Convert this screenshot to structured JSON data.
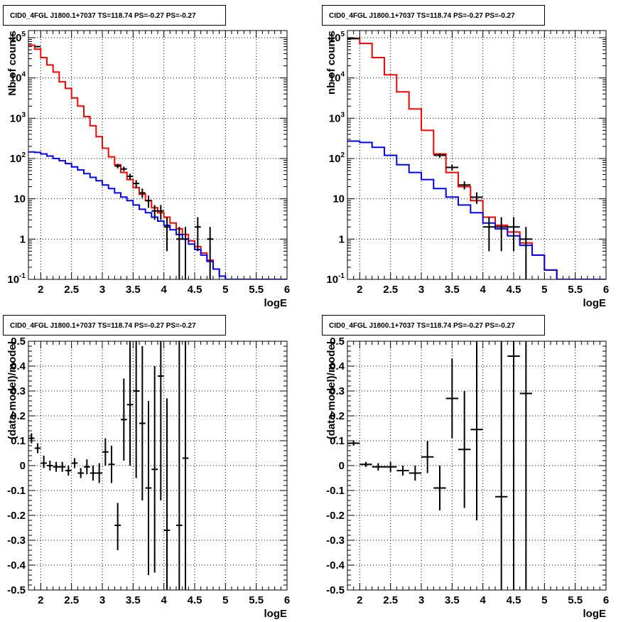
{
  "chart_data": [
    {
      "type": "line",
      "title": "CID0_4FGL J1800.1+7037 TS=118.74 PS=-0.27 PS=-0.27",
      "xlabel": "logE",
      "ylabel": "Nb of counts",
      "xlim": [
        1.8,
        6.0
      ],
      "ylim": [
        0.1,
        150000
      ],
      "ylog": true,
      "grid": true,
      "x_ticks": [
        "2",
        "2.5",
        "3",
        "3.5",
        "4",
        "4.5",
        "5",
        "5.5",
        "6"
      ],
      "y_ticks": [
        "10^-1",
        "1",
        "10",
        "10^2",
        "10^3",
        "10^4",
        "10^5"
      ],
      "bin_edges": [
        1.8,
        1.9,
        2.0,
        2.1,
        2.2,
        2.3,
        2.4,
        2.5,
        2.6,
        2.7,
        2.8,
        2.9,
        3.0,
        3.1,
        3.2,
        3.3,
        3.4,
        3.5,
        3.6,
        3.7,
        3.8,
        3.9,
        4.0,
        4.1,
        4.2,
        4.3,
        4.4,
        4.5,
        4.6,
        4.7,
        4.8,
        4.9,
        5.0,
        5.1,
        5.2,
        5.3,
        5.4,
        5.5,
        5.6,
        5.7,
        5.8,
        5.9,
        6.0
      ],
      "series": [
        {
          "color": "#ff0000",
          "values": [
            65000,
            52000,
            32000,
            21000,
            14000,
            8000,
            5500,
            3200,
            2000,
            1100,
            650,
            350,
            180,
            110,
            70,
            45,
            30,
            19,
            13,
            9,
            6,
            4.5,
            3.5,
            2.5,
            1.8,
            1.3,
            0.9,
            0.65,
            0.45,
            0.3,
            0.18,
            0.12,
            0.1,
            0.1,
            0.1,
            0.1,
            0.1,
            0.1,
            0.1,
            0.1,
            0.1,
            0.1
          ]
        },
        {
          "color": "#0000ff",
          "values": [
            145,
            142,
            130,
            115,
            100,
            88,
            75,
            62,
            52,
            42,
            34,
            28,
            22,
            18,
            14,
            11,
            9,
            7,
            5.5,
            4.5,
            3.5,
            2.8,
            2.2,
            1.7,
            1.3,
            1.0,
            0.75,
            0.55,
            0.4,
            0.28,
            0.18,
            0.12,
            0.1,
            0.1,
            0.1,
            0.1,
            0.1,
            0.1,
            0.1,
            0.1,
            0.1,
            0.1
          ]
        }
      ],
      "points": [
        {
          "x": 1.95,
          "y": 60000,
          "ylo": 58000,
          "yhi": 62000
        },
        {
          "x": 3.25,
          "y": 65,
          "ylo": 57,
          "yhi": 73
        },
        {
          "x": 3.35,
          "y": 55,
          "ylo": 48,
          "yhi": 63
        },
        {
          "x": 3.45,
          "y": 36,
          "ylo": 30,
          "yhi": 42
        },
        {
          "x": 3.55,
          "y": 24,
          "ylo": 19,
          "yhi": 29
        },
        {
          "x": 3.65,
          "y": 14,
          "ylo": 10.5,
          "yhi": 18
        },
        {
          "x": 3.75,
          "y": 9,
          "ylo": 6,
          "yhi": 12
        },
        {
          "x": 3.85,
          "y": 5,
          "ylo": 3,
          "yhi": 7
        },
        {
          "x": 3.95,
          "y": 5,
          "ylo": 3,
          "yhi": 7
        },
        {
          "x": 4.05,
          "y": 2,
          "ylo": 0.5,
          "yhi": 3.5
        },
        {
          "x": 4.25,
          "y": 1,
          "ylo": 0.1,
          "yhi": 2
        },
        {
          "x": 4.35,
          "y": 1,
          "ylo": 0.1,
          "yhi": 2
        },
        {
          "x": 4.55,
          "y": 2,
          "ylo": 0.5,
          "yhi": 3.5
        },
        {
          "x": 4.75,
          "y": 1,
          "ylo": 0.1,
          "yhi": 2
        }
      ]
    },
    {
      "type": "line",
      "title": "CID0_4FGL J1800.1+7037 TS=118.74 PS=-0.27 PS=-0.27",
      "xlabel": "logE",
      "ylabel": "nb of counts",
      "xlim": [
        1.8,
        6.0
      ],
      "ylim": [
        0.1,
        150000
      ],
      "ylog": true,
      "grid": true,
      "x_ticks": [
        "2",
        "2.5",
        "3",
        "3.5",
        "4",
        "4.5",
        "5",
        "5.5",
        "6"
      ],
      "y_ticks": [
        "10^-1",
        "1",
        "10",
        "10^2",
        "10^3",
        "10^4",
        "10^5"
      ],
      "bin_edges": [
        1.8,
        2.0,
        2.2,
        2.4,
        2.6,
        2.8,
        3.0,
        3.2,
        3.4,
        3.6,
        3.8,
        4.0,
        4.2,
        4.4,
        4.6,
        4.8,
        5.0,
        5.2,
        5.4,
        5.6,
        5.8,
        6.0
      ],
      "series": [
        {
          "color": "#ff0000",
          "values": [
            95000,
            72000,
            32000,
            12000,
            4500,
            1700,
            500,
            130,
            45,
            20,
            9,
            3.5,
            2.2,
            1.5,
            0.8,
            0.4,
            0.17,
            0.1,
            0.1,
            0.1,
            0.1
          ]
        },
        {
          "color": "#0000ff",
          "values": [
            270,
            250,
            190,
            120,
            70,
            45,
            30,
            18,
            11,
            7,
            4.5,
            2.5,
            1.8,
            1.2,
            0.7,
            0.4,
            0.17,
            0.1,
            0.1,
            0.1,
            0.1
          ]
        }
      ],
      "points": [
        {
          "x": 1.9,
          "y": 95000,
          "ylo": 92000,
          "yhi": 98000
        },
        {
          "x": 3.3,
          "y": 120,
          "ylo": 105,
          "yhi": 135
        },
        {
          "x": 3.5,
          "y": 60,
          "ylo": 50,
          "yhi": 70
        },
        {
          "x": 3.7,
          "y": 22,
          "ylo": 17,
          "yhi": 27
        },
        {
          "x": 3.9,
          "y": 11,
          "ylo": 7.5,
          "yhi": 14.5
        },
        {
          "x": 4.1,
          "y": 2,
          "ylo": 0.5,
          "yhi": 3.5
        },
        {
          "x": 4.3,
          "y": 2,
          "ylo": 0.5,
          "yhi": 3.5
        },
        {
          "x": 4.5,
          "y": 2,
          "ylo": 0.5,
          "yhi": 3.5
        },
        {
          "x": 4.7,
          "y": 1,
          "ylo": 0.1,
          "yhi": 2
        }
      ]
    },
    {
      "type": "scatter",
      "title": "CID0_4FGL J1800.1+7037 TS=118.74 PS=-0.27 PS=-0.27",
      "xlabel": "logE",
      "ylabel": "(data-model)/model",
      "xlim": [
        1.8,
        6.0
      ],
      "ylim": [
        -0.5,
        0.5
      ],
      "grid": true,
      "x_ticks": [
        "2",
        "2.5",
        "3",
        "3.5",
        "4",
        "4.5",
        "5",
        "5.5",
        "6"
      ],
      "y_ticks": [
        "-0.5",
        "-0.4",
        "-0.3",
        "-0.2",
        "-0.1",
        "0",
        "0.1",
        "0.2",
        "0.3",
        "0.4",
        "0.5"
      ],
      "points": [
        {
          "x": 1.85,
          "y": 0.11,
          "ylo": 0.09,
          "yhi": 0.13
        },
        {
          "x": 1.95,
          "y": 0.07,
          "ylo": 0.05,
          "yhi": 0.09
        },
        {
          "x": 2.05,
          "y": 0.01,
          "ylo": -0.01,
          "yhi": 0.04
        },
        {
          "x": 2.15,
          "y": 0.0,
          "ylo": -0.02,
          "yhi": 0.02
        },
        {
          "x": 2.25,
          "y": -0.005,
          "ylo": -0.025,
          "yhi": 0.015
        },
        {
          "x": 2.35,
          "y": -0.005,
          "ylo": -0.025,
          "yhi": 0.015
        },
        {
          "x": 2.45,
          "y": -0.02,
          "ylo": -0.04,
          "yhi": 0.0
        },
        {
          "x": 2.55,
          "y": 0.01,
          "ylo": -0.01,
          "yhi": 0.03
        },
        {
          "x": 2.65,
          "y": -0.03,
          "ylo": -0.05,
          "yhi": -0.01
        },
        {
          "x": 2.75,
          "y": -0.005,
          "ylo": -0.035,
          "yhi": 0.025
        },
        {
          "x": 2.85,
          "y": -0.03,
          "ylo": -0.06,
          "yhi": 0.0
        },
        {
          "x": 2.95,
          "y": -0.03,
          "ylo": -0.07,
          "yhi": 0.01
        },
        {
          "x": 3.05,
          "y": 0.055,
          "ylo": 0.0,
          "yhi": 0.11
        },
        {
          "x": 3.15,
          "y": 0.005,
          "ylo": -0.07,
          "yhi": 0.08
        },
        {
          "x": 3.25,
          "y": -0.24,
          "ylo": -0.34,
          "yhi": -0.15
        },
        {
          "x": 3.35,
          "y": 0.185,
          "ylo": 0.02,
          "yhi": 0.35
        },
        {
          "x": 3.45,
          "y": 0.245,
          "ylo": 0.0,
          "yhi": 0.5
        },
        {
          "x": 3.55,
          "y": 0.3,
          "ylo": -0.05,
          "yhi": 0.5
        },
        {
          "x": 3.65,
          "y": 0.17,
          "ylo": -0.14,
          "yhi": 0.48
        },
        {
          "x": 3.75,
          "y": -0.09,
          "ylo": -0.44,
          "yhi": 0.26
        },
        {
          "x": 3.85,
          "y": -0.015,
          "ylo": -0.43,
          "yhi": 0.4
        },
        {
          "x": 3.95,
          "y": 0.36,
          "ylo": -0.14,
          "yhi": 0.5
        },
        {
          "x": 4.05,
          "y": -0.26,
          "ylo": -0.5,
          "yhi": 0.27
        },
        {
          "x": 4.25,
          "y": -0.24,
          "ylo": -0.5,
          "yhi": 0.5
        },
        {
          "x": 4.35,
          "y": 0.03,
          "ylo": -0.5,
          "yhi": 0.5
        }
      ]
    },
    {
      "type": "scatter",
      "title": "CID0_4FGL J1800.1+7037 TS=118.74 PS=-0.27 PS=-0.27",
      "xlabel": "logE",
      "ylabel": "(data-model)/model",
      "xlim": [
        1.8,
        6.0
      ],
      "ylim": [
        -0.5,
        0.5
      ],
      "grid": true,
      "x_ticks": [
        "2",
        "2.5",
        "3",
        "3.5",
        "4",
        "4.5",
        "5",
        "5.5",
        "6"
      ],
      "y_ticks": [
        "-0.5",
        "-0.4",
        "-0.3",
        "-0.2",
        "-0.1",
        "0",
        "0.1",
        "0.2",
        "0.3",
        "0.4",
        "0.5"
      ],
      "points": [
        {
          "x": 1.9,
          "y": 0.09,
          "ylo": 0.08,
          "yhi": 0.1
        },
        {
          "x": 2.1,
          "y": 0.005,
          "ylo": -0.005,
          "yhi": 0.015
        },
        {
          "x": 2.3,
          "y": -0.005,
          "ylo": -0.02,
          "yhi": 0.01
        },
        {
          "x": 2.5,
          "y": -0.005,
          "ylo": -0.025,
          "yhi": 0.015
        },
        {
          "x": 2.7,
          "y": -0.02,
          "ylo": -0.04,
          "yhi": 0.0
        },
        {
          "x": 2.9,
          "y": -0.03,
          "ylo": -0.06,
          "yhi": 0.0
        },
        {
          "x": 3.1,
          "y": 0.035,
          "ylo": -0.03,
          "yhi": 0.1
        },
        {
          "x": 3.3,
          "y": -0.09,
          "ylo": -0.18,
          "yhi": 0.0
        },
        {
          "x": 3.5,
          "y": 0.27,
          "ylo": 0.11,
          "yhi": 0.43
        },
        {
          "x": 3.7,
          "y": 0.065,
          "ylo": -0.17,
          "yhi": 0.3
        },
        {
          "x": 3.9,
          "y": 0.145,
          "ylo": -0.22,
          "yhi": 0.5
        },
        {
          "x": 4.3,
          "y": -0.125,
          "ylo": -0.5,
          "yhi": 0.5
        },
        {
          "x": 4.5,
          "y": 0.44,
          "ylo": -0.5,
          "yhi": 0.5
        },
        {
          "x": 4.7,
          "y": 0.29,
          "ylo": -0.5,
          "yhi": 0.5
        }
      ]
    }
  ]
}
